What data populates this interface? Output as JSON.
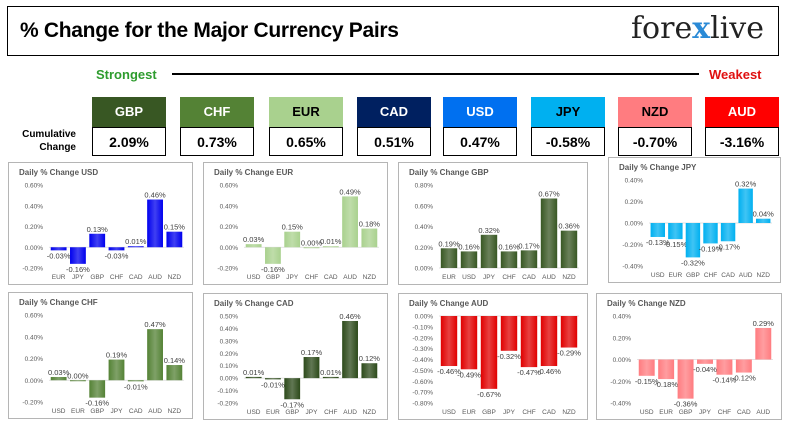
{
  "header": {
    "title": "% Change for the Major Currency Pairs",
    "logo_left": "fore",
    "logo_x": "x",
    "logo_right": "live"
  },
  "legend": {
    "strongest": "Strongest",
    "weakest": "Weakest",
    "cumulative_label_1": "Cumulative",
    "cumulative_label_2": "Change"
  },
  "currencies": [
    {
      "code": "GBP",
      "value": "2.09%",
      "color": "#385723",
      "text": "#ffffff"
    },
    {
      "code": "CHF",
      "value": "0.73%",
      "color": "#548235",
      "text": "#ffffff"
    },
    {
      "code": "EUR",
      "value": "0.65%",
      "color": "#a9d18e",
      "text": "#000000"
    },
    {
      "code": "CAD",
      "value": "0.51%",
      "color": "#002060",
      "text": "#ffffff"
    },
    {
      "code": "USD",
      "value": "0.47%",
      "color": "#0070f0",
      "text": "#ffffff"
    },
    {
      "code": "JPY",
      "value": "-0.58%",
      "color": "#00b0f0",
      "text": "#000000"
    },
    {
      "code": "NZD",
      "value": "-0.70%",
      "color": "#ff7c80",
      "text": "#000000"
    },
    {
      "code": "AUD",
      "value": "-3.16%",
      "color": "#ff0000",
      "text": "#ffffff"
    }
  ],
  "chart_data": [
    {
      "type": "bar",
      "title": "Daily % Change USD",
      "categories": [
        "EUR",
        "JPY",
        "GBP",
        "CHF",
        "CAD",
        "AUD",
        "NZD"
      ],
      "values": [
        -0.03,
        -0.16,
        0.13,
        -0.03,
        0.01,
        0.46,
        0.15
      ],
      "ylim": [
        -0.2,
        0.6
      ],
      "yticks": [
        "-0.20%",
        "0.00%",
        "0.20%",
        "0.40%",
        "0.60%"
      ],
      "color": "#0000ee",
      "ylabel": "",
      "xlabel": ""
    },
    {
      "type": "bar",
      "title": "Daily % Change EUR",
      "categories": [
        "USD",
        "GBP",
        "JPY",
        "CHF",
        "CAD",
        "AUD",
        "NZD"
      ],
      "values": [
        0.03,
        -0.16,
        0.15,
        0.0,
        0.01,
        0.49,
        0.18
      ],
      "ylim": [
        -0.2,
        0.6
      ],
      "yticks": [
        "-0.20%",
        "0.00%",
        "0.20%",
        "0.40%",
        "0.60%"
      ],
      "color": "#a9d18e",
      "ylabel": "",
      "xlabel": ""
    },
    {
      "type": "bar",
      "title": "Daily % Change GBP",
      "categories": [
        "EUR",
        "USD",
        "JPY",
        "CHF",
        "CAD",
        "AUD",
        "NZD"
      ],
      "values": [
        0.19,
        0.16,
        0.32,
        0.16,
        0.17,
        0.67,
        0.36
      ],
      "ylim": [
        0.0,
        0.8
      ],
      "yticks": [
        "0.00%",
        "0.20%",
        "0.40%",
        "0.60%",
        "0.80%"
      ],
      "color": "#385723",
      "ylabel": "",
      "xlabel": ""
    },
    {
      "type": "bar",
      "title": "Daily % Change JPY",
      "categories": [
        "USD",
        "EUR",
        "GBP",
        "CHF",
        "CAD",
        "AUD",
        "NZD"
      ],
      "values": [
        -0.13,
        -0.15,
        -0.32,
        -0.19,
        -0.17,
        0.32,
        0.04
      ],
      "ylim": [
        -0.4,
        0.4
      ],
      "yticks": [
        "-0.40%",
        "-0.20%",
        "0.00%",
        "0.20%",
        "0.40%"
      ],
      "color": "#00b0f0",
      "ylabel": "",
      "xlabel": ""
    },
    {
      "type": "bar",
      "title": "Daily % Change CHF",
      "categories": [
        "USD",
        "EUR",
        "GBP",
        "JPY",
        "CAD",
        "AUD",
        "NZD"
      ],
      "values": [
        0.03,
        0.0,
        -0.16,
        0.19,
        -0.01,
        0.47,
        0.14
      ],
      "ylim": [
        -0.2,
        0.6
      ],
      "yticks": [
        "-0.20%",
        "0.00%",
        "0.20%",
        "0.40%",
        "0.60%"
      ],
      "color": "#548235",
      "ylabel": "",
      "xlabel": ""
    },
    {
      "type": "bar",
      "title": "Daily % Change CAD",
      "categories": [
        "USD",
        "EUR",
        "GBP",
        "JPY",
        "CHF",
        "AUD",
        "NZD"
      ],
      "values": [
        0.01,
        -0.01,
        -0.17,
        0.17,
        0.01,
        0.46,
        0.12
      ],
      "ylim": [
        -0.2,
        0.5
      ],
      "yticks": [
        "-0.20%",
        "-0.10%",
        "0.00%",
        "0.10%",
        "0.20%",
        "0.30%",
        "0.40%",
        "0.50%"
      ],
      "color": "#2c4a1a",
      "ylabel": "",
      "xlabel": ""
    },
    {
      "type": "bar",
      "title": "Daily % Change AUD",
      "categories": [
        "USD",
        "EUR",
        "GBP",
        "JPY",
        "CHF",
        "CAD",
        "NZD"
      ],
      "values": [
        -0.46,
        -0.49,
        -0.67,
        -0.32,
        -0.47,
        -0.46,
        -0.29
      ],
      "ylim": [
        -0.8,
        0.0
      ],
      "yticks": [
        "-0.80%",
        "-0.70%",
        "-0.60%",
        "-0.50%",
        "-0.40%",
        "-0.30%",
        "-0.20%",
        "-0.10%",
        "0.00%"
      ],
      "color": "#e00000",
      "ylabel": "",
      "xlabel": ""
    },
    {
      "type": "bar",
      "title": "Daily % Change NZD",
      "categories": [
        "USD",
        "EUR",
        "GBP",
        "JPY",
        "CHF",
        "CAD",
        "AUD"
      ],
      "values": [
        -0.15,
        -0.18,
        -0.36,
        -0.04,
        -0.14,
        -0.12,
        0.29
      ],
      "ylim": [
        -0.4,
        0.4
      ],
      "yticks": [
        "-0.40%",
        "-0.20%",
        "0.00%",
        "0.20%",
        "0.40%"
      ],
      "color": "#ff7c80",
      "ylabel": "",
      "xlabel": ""
    }
  ]
}
